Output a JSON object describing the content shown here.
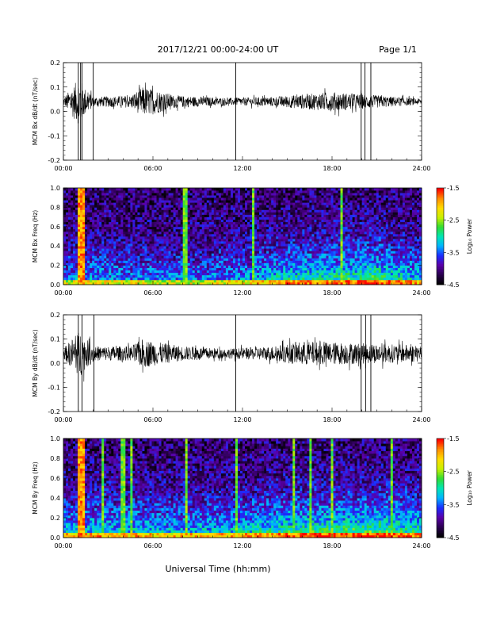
{
  "header": {
    "date_range": "2017/12/21  00:00-24:00 UT",
    "page": "Page 1/1"
  },
  "footer": {
    "xlabel": "Universal Time (hh:mm)"
  },
  "colors": {
    "trace": "#000000",
    "colormap": [
      "#000000",
      "#2a0050",
      "#5a00a8",
      "#1a2cff",
      "#00b4ff",
      "#00e6b4",
      "#32dc32",
      "#c8f000",
      "#ffdc00",
      "#ff8c00",
      "#ff0000"
    ]
  },
  "chart_data": [
    {
      "type": "line",
      "panel": "bx-waveform",
      "ylabel": "MCM Bx dB/dt (nT/sec)",
      "xlim_hours": [
        0,
        24
      ],
      "ylim": [
        -0.2,
        0.2
      ],
      "yticks": [
        -0.2,
        -0.1,
        0.0,
        0.1,
        0.2
      ],
      "ytick_labels": [
        "-0.2",
        "-0.1",
        "0.0",
        "0.1",
        "0.2"
      ],
      "xticks_hours": [
        0,
        6,
        12,
        18,
        24
      ],
      "xtick_labels": [
        "00:00",
        "06:00",
        "12:00",
        "18:00",
        "24:00"
      ],
      "baseline": 0.04,
      "noise_profile": [
        [
          0,
          0.015
        ],
        [
          1.1,
          0.1
        ],
        [
          1.4,
          0.06
        ],
        [
          2.0,
          0.02
        ],
        [
          4.5,
          0.025
        ],
        [
          5.3,
          0.06
        ],
        [
          6.2,
          0.05
        ],
        [
          7.5,
          0.025
        ],
        [
          11,
          0.015
        ],
        [
          14,
          0.02
        ],
        [
          18,
          0.04
        ],
        [
          20,
          0.03
        ],
        [
          24,
          0.012
        ]
      ],
      "spikes": [
        [
          1.0,
          -0.2,
          0.2
        ],
        [
          1.15,
          -0.2,
          0.2
        ],
        [
          1.25,
          -0.2,
          0.2
        ],
        [
          2.0,
          -0.2,
          0.2
        ],
        [
          11.55,
          -0.2,
          0.2
        ],
        [
          19.95,
          -0.2,
          0.2
        ],
        [
          20.2,
          -0.2,
          0.2
        ],
        [
          20.6,
          -0.2,
          0.2
        ]
      ]
    },
    {
      "type": "heatmap",
      "panel": "bx-spectrogram",
      "ylabel": "MCM Bx Freq (Hz)",
      "xlim_hours": [
        0,
        24
      ],
      "ylim": [
        0,
        1.0
      ],
      "yticks": [
        0.0,
        0.2,
        0.4,
        0.6,
        0.8,
        1.0
      ],
      "ytick_labels": [
        "0.0",
        "0.2",
        "0.4",
        "0.6",
        "0.8",
        "1.0"
      ],
      "xtick_labels": [
        "00:00",
        "06:00",
        "12:00",
        "18:00",
        "24:00"
      ],
      "colorbar": {
        "label": "Log₁₀ Power",
        "range": [
          -4.5,
          -1.5
        ],
        "tick_labels": [
          "-1.5",
          "-2.5",
          "-3.5",
          "-4.5"
        ]
      },
      "bright_bands_hours": [
        [
          0.95,
          1.5
        ]
      ],
      "vertical_lines_hours": [
        8.15,
        8.25,
        12.7,
        18.7
      ],
      "activity_profile": [
        [
          0,
          0.3
        ],
        [
          2,
          0.35
        ],
        [
          8,
          0.3
        ],
        [
          12,
          0.35
        ],
        [
          15,
          0.5
        ],
        [
          19,
          0.55
        ],
        [
          21,
          0.6
        ],
        [
          24,
          0.4
        ]
      ]
    },
    {
      "type": "line",
      "panel": "by-waveform",
      "ylabel": "MCM By dB/dt (nT/sec)",
      "xlim_hours": [
        0,
        24
      ],
      "ylim": [
        -0.2,
        0.2
      ],
      "yticks": [
        -0.2,
        -0.1,
        0.0,
        0.1,
        0.2
      ],
      "ytick_labels": [
        "-0.2",
        "-0.1",
        "0.0",
        "0.1",
        "0.2"
      ],
      "xticks_hours": [
        0,
        6,
        12,
        18,
        24
      ],
      "xtick_labels": [
        "00:00",
        "06:00",
        "12:00",
        "18:00",
        "24:00"
      ],
      "baseline": 0.04,
      "noise_profile": [
        [
          0,
          0.02
        ],
        [
          1.1,
          0.1
        ],
        [
          1.5,
          0.06
        ],
        [
          2.2,
          0.03
        ],
        [
          4.5,
          0.03
        ],
        [
          5.3,
          0.06
        ],
        [
          6.5,
          0.045
        ],
        [
          8.0,
          0.03
        ],
        [
          11,
          0.02
        ],
        [
          14,
          0.03
        ],
        [
          16,
          0.05
        ],
        [
          19,
          0.045
        ],
        [
          21,
          0.04
        ],
        [
          24,
          0.035
        ]
      ],
      "spikes": [
        [
          1.0,
          -0.2,
          0.2
        ],
        [
          1.25,
          -0.2,
          0.2
        ],
        [
          2.05,
          -0.2,
          0.2
        ],
        [
          11.55,
          -0.2,
          0.2
        ],
        [
          19.95,
          -0.2,
          0.2
        ],
        [
          20.25,
          -0.2,
          0.2
        ],
        [
          20.6,
          -0.2,
          0.2
        ]
      ]
    },
    {
      "type": "heatmap",
      "panel": "by-spectrogram",
      "ylabel": "MCM By Freq (Hz)",
      "xlim_hours": [
        0,
        24
      ],
      "ylim": [
        0,
        1.0
      ],
      "yticks": [
        0.0,
        0.2,
        0.4,
        0.6,
        0.8,
        1.0
      ],
      "ytick_labels": [
        "0.0",
        "0.2",
        "0.4",
        "0.6",
        "0.8",
        "1.0"
      ],
      "xtick_labels": [
        "00:00",
        "06:00",
        "12:00",
        "18:00",
        "24:00"
      ],
      "colorbar": {
        "label": "Log₁₀ Power",
        "range": [
          -4.5,
          -1.5
        ],
        "tick_labels": [
          "-1.5",
          "-2.5",
          "-3.5",
          "-4.5"
        ]
      },
      "bright_bands_hours": [
        [
          0.95,
          1.5
        ]
      ],
      "vertical_lines_hours": [
        2.6,
        4.0,
        4.6,
        8.2,
        11.6,
        15.4,
        16.5,
        18.0,
        22.0
      ],
      "activity_profile": [
        [
          0,
          0.4
        ],
        [
          2,
          0.45
        ],
        [
          8,
          0.42
        ],
        [
          12,
          0.45
        ],
        [
          15,
          0.55
        ],
        [
          19,
          0.6
        ],
        [
          21,
          0.62
        ],
        [
          24,
          0.5
        ]
      ]
    }
  ]
}
